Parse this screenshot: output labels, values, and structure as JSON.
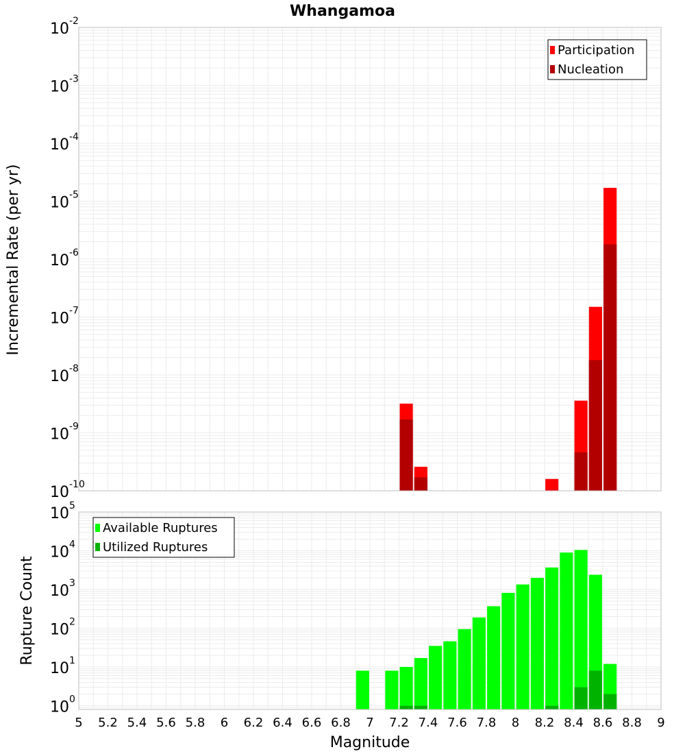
{
  "chart_data": [
    {
      "type": "bar",
      "title": "Whangamoa",
      "xlabel": "",
      "ylabel": "Incremental Rate (per yr)",
      "yscale": "log",
      "xlim": [
        5,
        9
      ],
      "ylim": [
        1e-10,
        0.01
      ],
      "ytick_exponents": [
        "-2",
        "-3",
        "-4",
        "-5",
        "-6",
        "-7",
        "-8",
        "-9",
        "-10"
      ],
      "grid": true,
      "bar_width": 0.09,
      "legend": {
        "position": "top-right",
        "entries": [
          "Participation",
          "Nucleation"
        ]
      },
      "series": [
        {
          "name": "Participation",
          "color": "#ff0000",
          "x": [
            7.25,
            7.35,
            8.25,
            8.45,
            8.55,
            8.65
          ],
          "values": [
            3.2e-09,
            2.6e-10,
            1.6e-10,
            3.6e-09,
            1.5e-07,
            1.7e-05
          ]
        },
        {
          "name": "Nucleation",
          "color": "#b20000",
          "x": [
            7.25,
            7.35,
            8.45,
            8.55,
            8.65
          ],
          "values": [
            1.7e-09,
            1.7e-10,
            4.6e-10,
            1.8e-08,
            1.8e-06
          ]
        }
      ]
    },
    {
      "type": "bar",
      "title": "",
      "xlabel": "Magnitude",
      "ylabel": "Rupture Count",
      "yscale": "log",
      "xlim": [
        5,
        9
      ],
      "ylim": [
        0.8,
        100000
      ],
      "ytick_exponents": [
        "5",
        "4",
        "3",
        "2",
        "1",
        "0"
      ],
      "xticks": [
        "5",
        "5.2",
        "5.4",
        "5.6",
        "5.8",
        "6",
        "6.2",
        "6.4",
        "6.6",
        "6.8",
        "7",
        "7.2",
        "7.4",
        "7.6",
        "7.8",
        "8",
        "8.2",
        "8.4",
        "8.6",
        "8.8",
        "9"
      ],
      "grid": true,
      "bar_width": 0.09,
      "legend": {
        "position": "top-left",
        "entries": [
          "Available Ruptures",
          "Utilized Ruptures"
        ]
      },
      "series": [
        {
          "name": "Available Ruptures",
          "color": "#00ff00",
          "x": [
            6.95,
            7.15,
            7.25,
            7.35,
            7.45,
            7.55,
            7.65,
            7.75,
            7.85,
            7.95,
            8.05,
            8.15,
            8.25,
            8.35,
            8.45,
            8.55,
            8.65
          ],
          "values": [
            8,
            8,
            10,
            17,
            35,
            46,
            95,
            190,
            370,
            820,
            1350,
            2000,
            3700,
            9000,
            10500,
            2400,
            12
          ]
        },
        {
          "name": "Utilized Ruptures",
          "color": "#00b200",
          "x": [
            7.25,
            7.35,
            8.25,
            8.45,
            8.55,
            8.65
          ],
          "values": [
            1,
            1,
            1,
            3,
            8,
            2
          ]
        }
      ]
    }
  ]
}
